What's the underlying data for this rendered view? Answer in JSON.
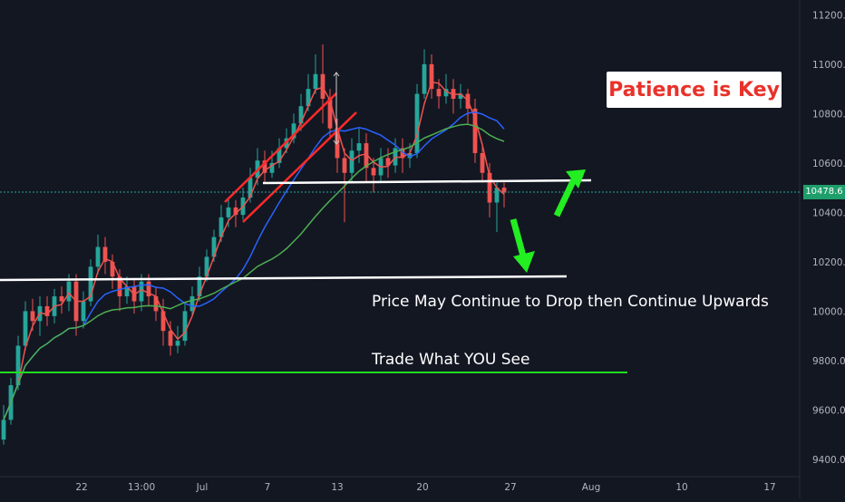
{
  "chart_data": {
    "type": "candlestick",
    "title": "",
    "x_tick_labels": [
      "22",
      "13:00",
      "Jul",
      "7",
      "13",
      "20",
      "27",
      "Aug",
      "10",
      "17"
    ],
    "y_tick_labels": [
      "9400.0",
      "9600.0",
      "9800.0",
      "10000.0",
      "10200.0",
      "10400.0",
      "10600.0",
      "10800.0",
      "11000.0",
      "11200.0"
    ],
    "ylim": [
      9330,
      11260
    ],
    "last_price": "10478.6",
    "grid": false,
    "legend": "none",
    "annotations": {
      "title_box": "Patience is Key",
      "note_1": "Price May Continue to Drop then Continue Upwards",
      "note_2": "Trade What YOU See"
    },
    "series": [
      {
        "name": "",
        "kind": "moving-average",
        "color": "#ef5350"
      },
      {
        "name": "",
        "kind": "moving-average",
        "color": "#2962ff"
      },
      {
        "name": "",
        "kind": "moving-average",
        "color": "#4caf50"
      }
    ],
    "candles_approx": [
      [
        9480,
        9560,
        9460,
        9620
      ],
      [
        9560,
        9700,
        9540,
        9730
      ],
      [
        9700,
        9860,
        9680,
        9900
      ],
      [
        9860,
        10000,
        9840,
        10040
      ],
      [
        10000,
        9960,
        9920,
        10050
      ],
      [
        9960,
        10020,
        9900,
        10060
      ],
      [
        10020,
        9980,
        9940,
        10060
      ],
      [
        9980,
        10060,
        9950,
        10090
      ],
      [
        10060,
        10040,
        9990,
        10100
      ],
      [
        10040,
        10120,
        10000,
        10150
      ],
      [
        10120,
        9960,
        9900,
        10150
      ],
      [
        9960,
        10040,
        9930,
        10080
      ],
      [
        10040,
        10180,
        10020,
        10210
      ],
      [
        10180,
        10260,
        10150,
        10310
      ],
      [
        10260,
        10200,
        10150,
        10300
      ],
      [
        10200,
        10140,
        10090,
        10230
      ],
      [
        10140,
        10060,
        10000,
        10170
      ],
      [
        10060,
        10100,
        10030,
        10140
      ],
      [
        10100,
        10040,
        9990,
        10130
      ],
      [
        10040,
        10120,
        10000,
        10150
      ],
      [
        10120,
        10060,
        10020,
        10150
      ],
      [
        10060,
        10000,
        9960,
        10100
      ],
      [
        10000,
        9920,
        9860,
        10050
      ],
      [
        9920,
        9860,
        9820,
        9960
      ],
      [
        9860,
        9880,
        9830,
        9940
      ],
      [
        9880,
        10000,
        9860,
        10030
      ],
      [
        10000,
        10060,
        9980,
        10100
      ],
      [
        10060,
        10140,
        10040,
        10180
      ],
      [
        10140,
        10220,
        10120,
        10250
      ],
      [
        10220,
        10300,
        10200,
        10330
      ],
      [
        10300,
        10380,
        10280,
        10430
      ],
      [
        10380,
        10420,
        10340,
        10460
      ],
      [
        10420,
        10390,
        10340,
        10450
      ],
      [
        10390,
        10460,
        10370,
        10500
      ],
      [
        10460,
        10540,
        10440,
        10580
      ],
      [
        10540,
        10610,
        10510,
        10660
      ],
      [
        10610,
        10560,
        10520,
        10650
      ],
      [
        10560,
        10600,
        10540,
        10650
      ],
      [
        10600,
        10660,
        10580,
        10700
      ],
      [
        10660,
        10700,
        10640,
        10740
      ],
      [
        10700,
        10760,
        10680,
        10800
      ],
      [
        10760,
        10830,
        10730,
        10880
      ],
      [
        10830,
        10900,
        10810,
        10960
      ],
      [
        10900,
        10960,
        10880,
        11040
      ],
      [
        10960,
        10860,
        10760,
        11080
      ],
      [
        10860,
        10740,
        10700,
        10900
      ],
      [
        10740,
        10620,
        10560,
        10780
      ],
      [
        10620,
        10560,
        10360,
        10660
      ],
      [
        10560,
        10650,
        10520,
        10700
      ],
      [
        10650,
        10680,
        10600,
        10740
      ],
      [
        10680,
        10580,
        10520,
        10720
      ],
      [
        10580,
        10550,
        10480,
        10620
      ],
      [
        10550,
        10620,
        10520,
        10660
      ],
      [
        10620,
        10590,
        10540,
        10660
      ],
      [
        10590,
        10660,
        10560,
        10700
      ],
      [
        10660,
        10620,
        10560,
        10700
      ],
      [
        10620,
        10640,
        10580,
        10680
      ],
      [
        10640,
        10880,
        10620,
        10920
      ],
      [
        10880,
        11000,
        10860,
        11060
      ],
      [
        11000,
        10900,
        10860,
        11040
      ],
      [
        10900,
        10870,
        10820,
        10940
      ],
      [
        10870,
        10900,
        10840,
        10960
      ],
      [
        10900,
        10860,
        10800,
        10940
      ],
      [
        10860,
        10880,
        10820,
        10920
      ],
      [
        10880,
        10820,
        10760,
        10900
      ],
      [
        10820,
        10640,
        10600,
        10860
      ],
      [
        10640,
        10560,
        10520,
        10680
      ],
      [
        10560,
        10440,
        10380,
        10600
      ],
      [
        10440,
        10500,
        10320,
        10520
      ],
      [
        10500,
        10480,
        10420,
        10520
      ]
    ]
  }
}
